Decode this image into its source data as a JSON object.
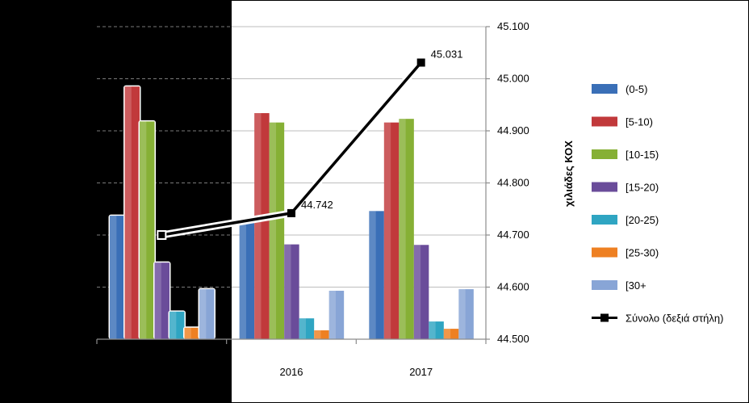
{
  "chart_data": {
    "type": "bar",
    "categories": [
      "",
      "2016",
      "2017"
    ],
    "series": [
      {
        "name": "(0-5)",
        "color": "#3a6fb7",
        "values": [
          2.37,
          2.32,
          2.46
        ]
      },
      {
        "name": "[5-10)",
        "color": "#c1393b",
        "values": [
          4.85,
          4.34,
          4.16
        ]
      },
      {
        "name": "[10-15)",
        "color": "#86b035",
        "values": [
          4.18,
          4.16,
          4.23
        ]
      },
      {
        "name": "[15-20)",
        "color": "#6a4c9a",
        "values": [
          1.47,
          1.82,
          1.81
        ]
      },
      {
        "name": "[20-25)",
        "color": "#2fa5c2",
        "values": [
          0.53,
          0.4,
          0.34
        ]
      },
      {
        "name": "[25-30)",
        "color": "#ee8022",
        "values": [
          0.22,
          0.17,
          0.2
        ]
      },
      {
        "name": "[30+",
        "color": "#88a5d6",
        "values": [
          0.96,
          0.93,
          0.96
        ]
      }
    ],
    "line": {
      "name": "Σύνολο (δεξιά στήλη)",
      "axis": "right",
      "values": [
        44.7,
        44.742,
        45.031
      ],
      "labels": [
        "",
        "44.742",
        "45.031"
      ]
    },
    "right_axis": {
      "title": "χιλιάδες ΚΟΧ",
      "ylim": [
        44.5,
        45.1
      ],
      "ticks": [
        "44.500",
        "44.600",
        "44.700",
        "44.800",
        "44.900",
        "45.000",
        "45.100"
      ]
    },
    "left_ylim": [
      0,
      6
    ],
    "grid": true,
    "legend_position": "right"
  }
}
